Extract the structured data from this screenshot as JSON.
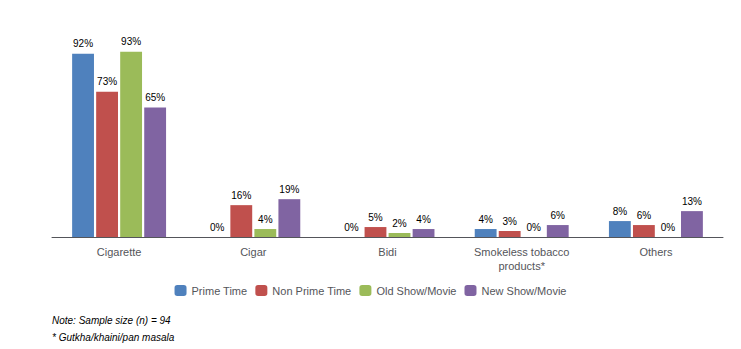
{
  "chart_data": {
    "type": "bar",
    "categories": [
      "Cigarette",
      "Cigar",
      "Bidi",
      "Smokeless tobacco\nproducts*",
      "Others"
    ],
    "series": [
      {
        "name": "Prime Time",
        "color": "#4F81BD",
        "values": [
          92,
          0,
          0,
          4,
          8
        ],
        "value_labels": [
          "92%",
          "0%",
          "0%",
          "4%",
          "8%"
        ]
      },
      {
        "name": "Non Prime Time",
        "color": "#C0504D",
        "values": [
          73,
          16,
          5,
          3,
          6
        ],
        "value_labels": [
          "73%",
          "16%",
          "5%",
          "3%",
          "6%"
        ]
      },
      {
        "name": "Old Show/Movie",
        "color": "#9BBB59",
        "values": [
          93,
          4,
          2,
          0,
          0
        ],
        "value_labels": [
          "93%",
          "4%",
          "2%",
          "0%",
          "0%"
        ]
      },
      {
        "name": "New Show/Movie",
        "color": "#8064A2",
        "values": [
          65,
          19,
          4,
          6,
          13
        ],
        "value_labels": [
          "65%",
          "19%",
          "4%",
          "6%",
          "13%"
        ]
      }
    ],
    "ylim": [
      0,
      108
    ],
    "annotations": [
      "Note: Sample size (n) = 94",
      "* Gutkha/khaini/pan masala"
    ],
    "data_labels": true,
    "tick_labels": "x",
    "grid": false,
    "legend": "bottom"
  }
}
